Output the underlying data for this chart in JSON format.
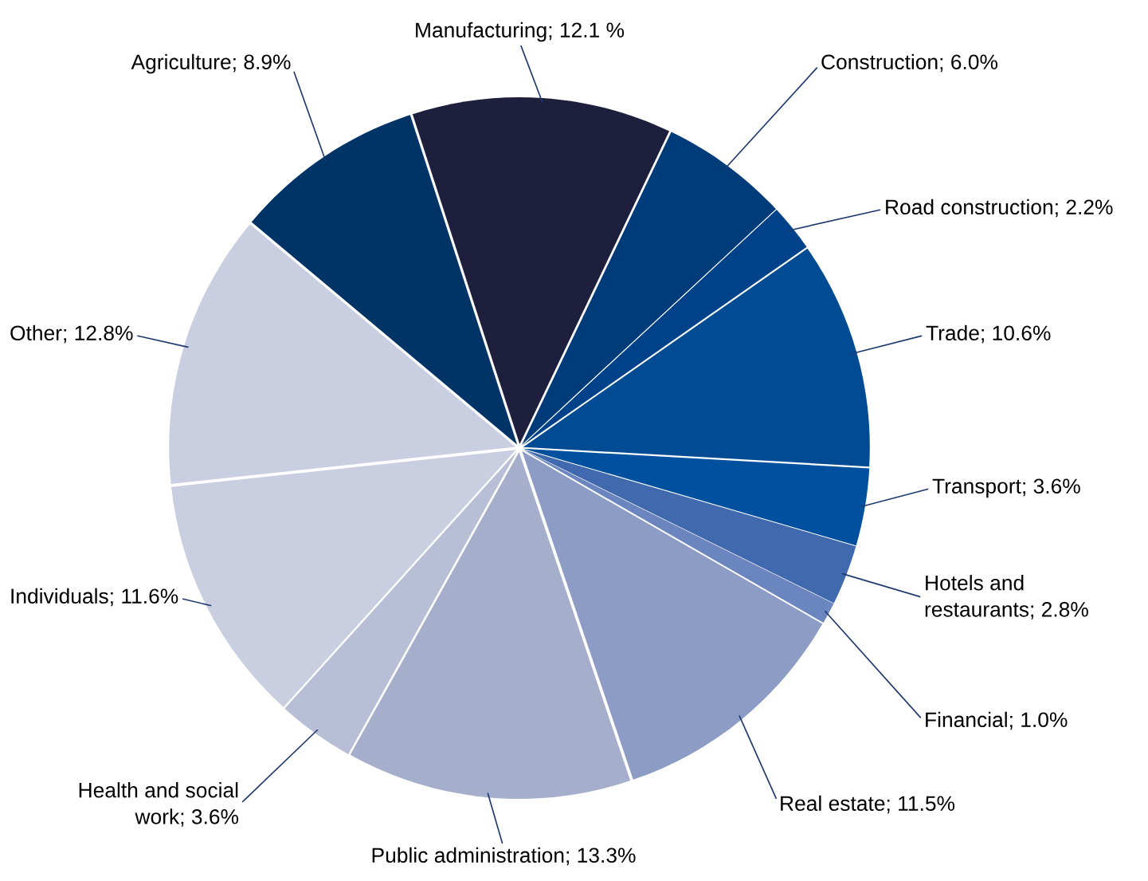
{
  "chart_data": {
    "type": "pie",
    "categories": [
      "Manufacturing",
      "Construction",
      "Road construction",
      "Trade",
      "Transport",
      "Hotels and restaurants",
      "Financial",
      "Real estate",
      "Public administration",
      "Health and social work",
      "Individuals",
      "Other",
      "Agriculture"
    ],
    "values": [
      12.1,
      6.0,
      2.2,
      10.6,
      3.6,
      2.8,
      1.0,
      11.5,
      13.3,
      3.6,
      11.6,
      12.8,
      8.9
    ],
    "value_labels": [
      "12.1 %",
      "6.0%",
      "2.2%",
      "10.6%",
      "3.6%",
      "2.8%",
      "1.0%",
      "11.5%",
      "13.3%",
      "3.6%",
      "11.6%",
      "12.8%",
      "8.9%"
    ],
    "colors": [
      "#1e1f3d",
      "#003b7a",
      "#00428a",
      "#004b93",
      "#0050a0",
      "#4169ad",
      "#6b85bf",
      "#8c9cc4",
      "#a5aecb",
      "#b7bed6",
      "#c9cfe0",
      "#c9cfe0",
      "#003366"
    ],
    "legend": false
  }
}
